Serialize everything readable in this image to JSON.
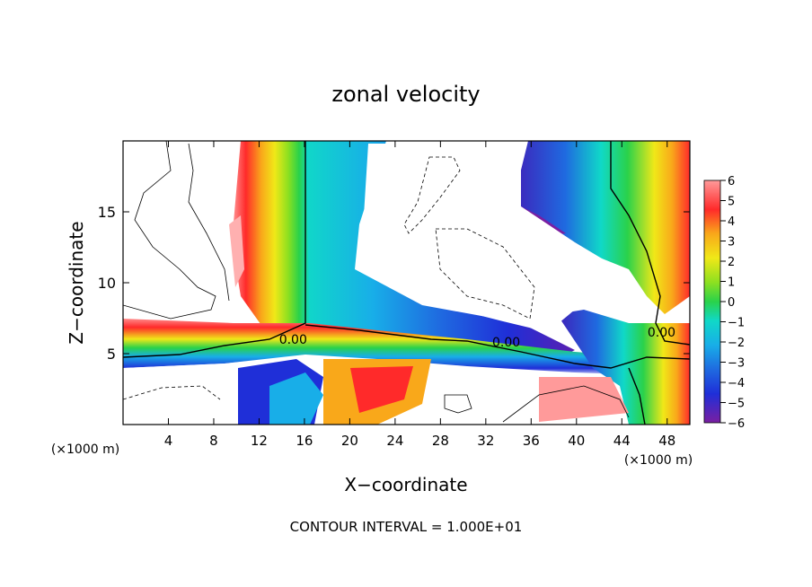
{
  "chart_data": {
    "type": "heatmap",
    "title": "zonal velocity",
    "xlabel": "X−coordinate",
    "ylabel": "Z−coordinate",
    "x_unit_left": "(×1000 m)",
    "x_unit_right": "(×1000 m)",
    "footer": "CONTOUR INTERVAL = 1.000E+01",
    "xlim": [
      0,
      50
    ],
    "ylim": [
      0,
      20
    ],
    "xticks": [
      4,
      8,
      12,
      16,
      20,
      24,
      28,
      32,
      36,
      40,
      44,
      48
    ],
    "yticks": [
      5,
      10,
      15
    ],
    "colorbar": {
      "range": [
        -6,
        6
      ],
      "ticks": [
        6,
        5,
        4,
        3,
        2,
        1,
        0,
        -1,
        -2,
        -3,
        -4,
        -5,
        -6
      ],
      "colors": [
        "#7a1fa2",
        "#3f1fb8",
        "#1f2fd8",
        "#1f6ae0",
        "#18aee8",
        "#10d8c8",
        "#2ad24a",
        "#8ee020",
        "#f0e818",
        "#f9a81a",
        "#f25a1a",
        "#ff2a2a",
        "#ff9a9a"
      ]
    },
    "contour_labels": [
      {
        "text": "0.00",
        "x": 15.0,
        "y": 5.7
      },
      {
        "text": "0.00",
        "x": 33.8,
        "y": 5.5
      },
      {
        "text": "0.00",
        "x": 47.5,
        "y": 6.2
      }
    ],
    "grid": false
  }
}
